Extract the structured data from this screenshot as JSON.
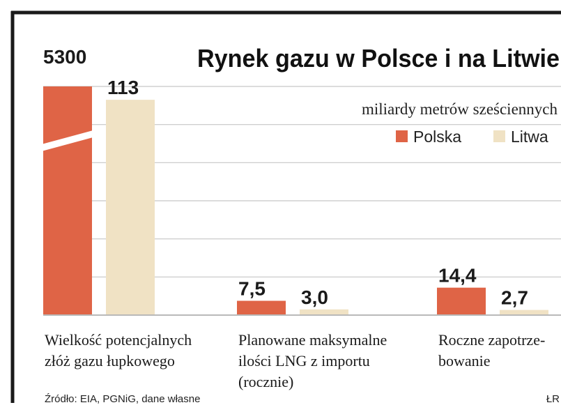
{
  "chart_data": {
    "type": "bar",
    "title": "Rynek gazu w Polsce i na Litwie",
    "subtitle": "miliardy metrów sześciennych",
    "categories": [
      [
        "Wielkość potencjalnych",
        "złóż gazu łupkowego"
      ],
      [
        "Planowane maksymalne",
        "ilości LNG z importu",
        "(rocznie)"
      ],
      [
        "Roczne zapotrze-",
        "bowanie"
      ]
    ],
    "series": [
      {
        "name": "Polska",
        "color": "#df6446",
        "values": [
          5300,
          7.5,
          14.4
        ],
        "labels": [
          "5300",
          "7,5",
          "14,4"
        ]
      },
      {
        "name": "Litwa",
        "color": "#f0e2c4",
        "values": [
          113,
          3.0,
          2.7
        ],
        "labels": [
          "113",
          "3,0",
          "2,7"
        ]
      }
    ],
    "ylim": [
      0,
      120
    ],
    "axis_break": true,
    "grid": true,
    "legend_position": "top-right",
    "source": "Źródło: EIA, PGNiG, dane własne",
    "credit": "ŁR"
  }
}
